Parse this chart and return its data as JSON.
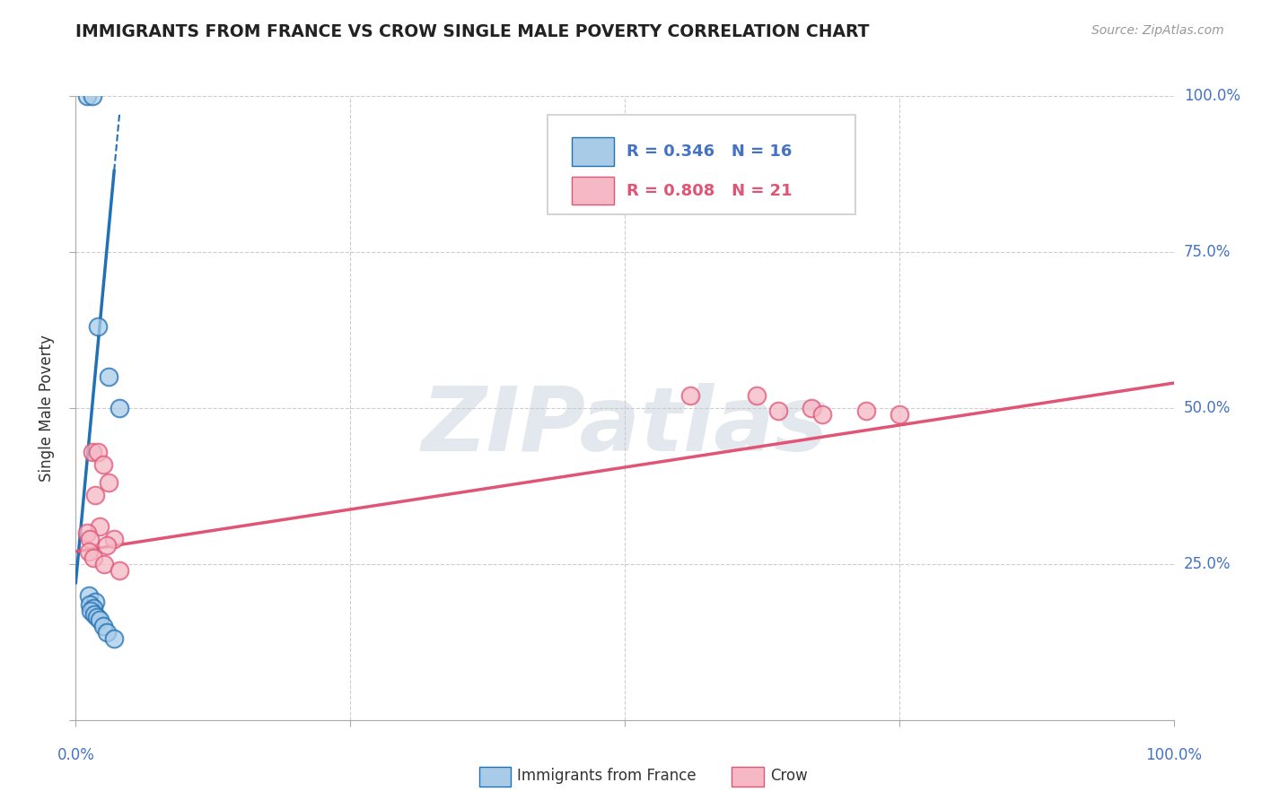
{
  "title": "IMMIGRANTS FROM FRANCE VS CROW SINGLE MALE POVERTY CORRELATION CHART",
  "source": "Source: ZipAtlas.com",
  "ylabel": "Single Male Poverty",
  "legend_blue_r": "R = 0.346",
  "legend_blue_n": "N = 16",
  "legend_pink_r": "R = 0.808",
  "legend_pink_n": "N = 21",
  "legend_blue_label": "Immigrants from France",
  "legend_pink_label": "Crow",
  "blue_scatter_x": [
    1.0,
    1.5,
    2.0,
    3.0,
    4.0,
    1.2,
    1.8,
    1.3,
    1.6,
    1.4,
    1.7,
    1.9,
    2.2,
    2.5,
    2.8,
    3.5
  ],
  "blue_scatter_y": [
    100.0,
    100.0,
    63.0,
    55.0,
    50.0,
    20.0,
    19.0,
    18.5,
    18.0,
    17.5,
    17.0,
    16.5,
    16.0,
    15.0,
    14.0,
    13.0
  ],
  "pink_scatter_x": [
    1.5,
    2.0,
    2.5,
    3.0,
    1.8,
    2.2,
    1.0,
    1.3,
    3.5,
    2.8,
    56.0,
    62.0,
    67.0,
    72.0,
    75.0,
    64.0,
    68.0,
    1.2,
    1.6,
    2.6,
    4.0
  ],
  "pink_scatter_y": [
    43.0,
    43.0,
    41.0,
    38.0,
    36.0,
    31.0,
    30.0,
    29.0,
    29.0,
    28.0,
    52.0,
    52.0,
    50.0,
    49.5,
    49.0,
    49.5,
    49.0,
    27.0,
    26.0,
    25.0,
    24.0
  ],
  "blue_color": "#a8cce8",
  "pink_color": "#f5b8c4",
  "blue_line_color": "#2171b5",
  "pink_line_color": "#e05575",
  "blue_trend_x0": 0.0,
  "blue_trend_y0": 22.0,
  "blue_trend_x1": 3.5,
  "blue_trend_y1": 88.0,
  "blue_trend_solid_xmax": 3.5,
  "blue_trend_dashed_xmax": 20.0,
  "pink_trend_x0": 0.0,
  "pink_trend_y0": 27.0,
  "pink_trend_x1": 100.0,
  "pink_trend_y1": 54.0,
  "watermark_text": "ZIPatlas",
  "bg_color": "#ffffff",
  "grid_color": "#c8c8c8",
  "axis_label_color": "#4472c4",
  "title_color": "#222222",
  "xmin": 0,
  "xmax": 100,
  "ymin": 0,
  "ymax": 100,
  "xtick_positions": [
    0,
    25,
    50,
    75,
    100
  ],
  "ytick_positions": [
    0,
    25,
    50,
    75,
    100
  ],
  "right_ytick_labels": [
    "25.0%",
    "50.0%",
    "75.0%",
    "100.0%"
  ],
  "right_ytick_positions": [
    25,
    50,
    75,
    100
  ]
}
